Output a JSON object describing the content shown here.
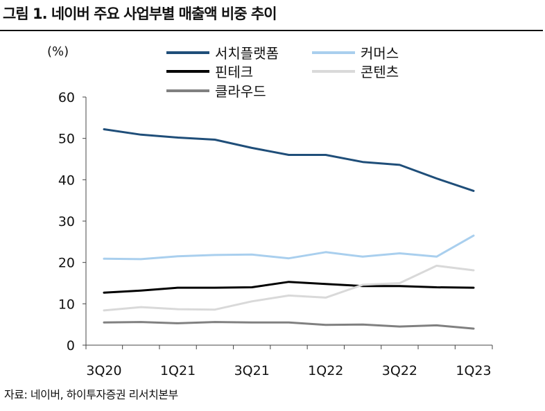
{
  "header": {
    "title": "그림 1. 네이버 주요 사업부별 매출액 비중 추이"
  },
  "footer": {
    "source": "자료: 네이버, 하이투자증권 리서치본부"
  },
  "chart_data": {
    "type": "line",
    "unit_label": "(%)",
    "x": [
      "3Q20",
      "4Q20",
      "1Q21",
      "2Q21",
      "3Q21",
      "4Q21",
      "1Q22",
      "2Q22",
      "3Q22",
      "4Q22",
      "1Q23"
    ],
    "x_tick_labels": [
      "3Q20",
      "",
      "1Q21",
      "",
      "3Q21",
      "",
      "1Q22",
      "",
      "3Q22",
      "",
      "1Q23"
    ],
    "ylim": [
      0,
      60
    ],
    "y_ticks": [
      0,
      10,
      20,
      30,
      40,
      50,
      60
    ],
    "grid": false,
    "legend_position": "top",
    "series": [
      {
        "name": "서치플랫폼",
        "color": "#1f4e79",
        "values": [
          52.2,
          50.9,
          50.2,
          49.7,
          47.7,
          46.0,
          46.0,
          44.3,
          43.6,
          40.3,
          37.3
        ]
      },
      {
        "name": "커머스",
        "color": "#a9cfee",
        "values": [
          20.9,
          20.8,
          21.5,
          21.8,
          21.9,
          21.0,
          22.5,
          21.4,
          22.2,
          21.4,
          26.5
        ]
      },
      {
        "name": "핀테크",
        "color": "#000000",
        "values": [
          12.7,
          13.2,
          13.9,
          13.9,
          14.0,
          15.3,
          14.8,
          14.3,
          14.3,
          14.0,
          13.9
        ]
      },
      {
        "name": "콘텐츠",
        "color": "#d9d9d9",
        "values": [
          8.4,
          9.2,
          8.7,
          8.6,
          10.6,
          12.0,
          11.5,
          14.6,
          15.0,
          19.2,
          18.1
        ]
      },
      {
        "name": "클라우드",
        "color": "#808080",
        "values": [
          5.5,
          5.6,
          5.3,
          5.6,
          5.5,
          5.5,
          4.9,
          5.0,
          4.5,
          4.8,
          4.0
        ]
      }
    ]
  }
}
